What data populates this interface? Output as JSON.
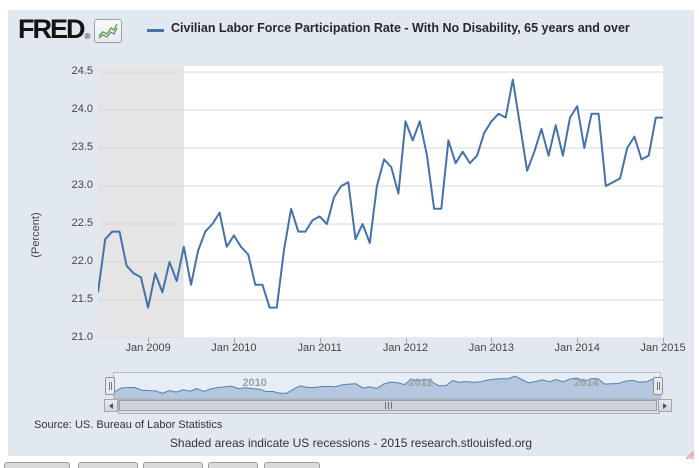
{
  "header": {
    "logo_text": "FRED",
    "reg_mark": "®",
    "legend_label": "Civilian Labor Force Participation Rate - With No Disability, 65 years and over"
  },
  "chart_data": {
    "type": "line",
    "series_name": "Civilian Labor Force Participation Rate - With No Disability, 65 years and over",
    "ylabel": "(Percent)",
    "y_min": 21.0,
    "y_max": 24.5,
    "y_ticks": [
      21.0,
      21.5,
      22.0,
      22.5,
      23.0,
      23.5,
      24.0,
      24.5
    ],
    "x_start": "Jun 2008",
    "x_end": "Jan 2015",
    "frequency": "Monthly",
    "x_tick_labels": [
      "Jan 2009",
      "Jan 2010",
      "Jan 2011",
      "Jan 2012",
      "Jan 2013",
      "Jan 2014",
      "Jan 2015"
    ],
    "x_tick_indices": [
      7,
      19,
      31,
      43,
      55,
      67,
      79
    ],
    "recession_band": {
      "label": "US recession",
      "start": "Jun 2008",
      "end": "Jun 2009",
      "end_index": 12
    },
    "values": [
      21.6,
      22.3,
      22.4,
      22.4,
      21.95,
      21.85,
      21.8,
      21.4,
      21.85,
      21.6,
      22.0,
      21.75,
      22.2,
      21.7,
      22.15,
      22.4,
      22.5,
      22.65,
      22.2,
      22.35,
      22.2,
      22.1,
      21.7,
      21.7,
      21.4,
      21.4,
      22.15,
      22.7,
      22.4,
      22.4,
      22.55,
      22.6,
      22.5,
      22.85,
      23.0,
      23.05,
      22.3,
      22.5,
      22.25,
      23.0,
      23.35,
      23.25,
      22.9,
      23.85,
      23.6,
      23.85,
      23.4,
      22.7,
      22.7,
      23.6,
      23.3,
      23.45,
      23.3,
      23.4,
      23.7,
      23.85,
      23.95,
      23.9,
      24.4,
      23.8,
      23.2,
      23.45,
      23.75,
      23.4,
      23.8,
      23.4,
      23.9,
      24.05,
      23.5,
      23.95,
      23.95,
      23.0,
      23.05,
      23.1,
      23.5,
      23.65,
      23.35,
      23.4,
      23.9,
      23.9
    ]
  },
  "navigator": {
    "labels": [
      {
        "text": "2010",
        "index": 19
      },
      {
        "text": "2012",
        "index": 43
      },
      {
        "text": "2014",
        "index": 67
      }
    ]
  },
  "footer": {
    "source": "Source: US. Bureau of Labor Statistics",
    "note": "Shaded areas indicate US recessions - 2015 research.stlouisfed.org"
  },
  "colors": {
    "line": "#4572a7",
    "recession": "#e5e5e5",
    "grid": "#d8d8d8",
    "card_bg": "#e1e8f0",
    "nav_fill": "#a9c0da",
    "nav_line": "#5580ad",
    "spark_green": "#6fae3f",
    "spark_blue": "#5b7fa6"
  }
}
